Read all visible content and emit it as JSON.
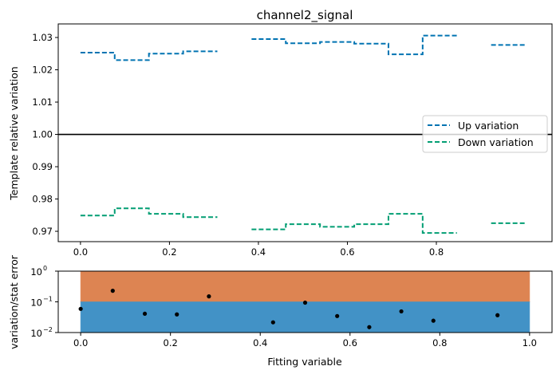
{
  "chart_data": [
    {
      "type": "line",
      "step": "post",
      "title": "channel2_signal",
      "xlabel": "",
      "ylabel": "Template relative variation",
      "xlim": [
        -0.05,
        1.06
      ],
      "ylim": [
        0.9668,
        1.0342
      ],
      "xticks": [
        "0.0",
        "0.2",
        "0.4",
        "0.6",
        "0.8"
      ],
      "xtick_values": [
        0,
        0.2,
        0.4,
        0.6,
        0.8
      ],
      "yticks": [
        "0.97",
        "0.98",
        "0.99",
        "1.00",
        "1.01",
        "1.02",
        "1.03"
      ],
      "ytick_values": [
        0.97,
        0.98,
        0.99,
        1.0,
        1.01,
        1.02,
        1.03
      ],
      "reference_line": 1.0,
      "bin_edges": [
        0,
        0.0769,
        0.1538,
        0.2308,
        0.3077,
        0.3846,
        0.4615,
        0.5385,
        0.6154,
        0.6923,
        0.7692,
        0.8462,
        0.9231,
        1.0
      ],
      "series": [
        {
          "name": "Up variation",
          "color": "#0173b2",
          "values": [
            1.0253,
            1.023,
            1.025,
            1.0257,
            null,
            1.0295,
            1.0282,
            1.0286,
            1.0281,
            1.0248,
            1.0306,
            null,
            1.0277
          ]
        },
        {
          "name": "Down variation",
          "color": "#029e73",
          "values": [
            0.9749,
            0.9771,
            0.9754,
            0.9744,
            null,
            0.9706,
            0.9722,
            0.9714,
            0.9722,
            0.9754,
            0.9695,
            null,
            0.9725
          ]
        }
      ],
      "legend": "center-right"
    },
    {
      "type": "scatter",
      "xlabel": "Fitting variable",
      "ylabel": "variation/stat error",
      "yscale": "log",
      "xlim": [
        -0.05,
        1.05
      ],
      "ylim": [
        0.01,
        1
      ],
      "xticks": [
        "0.0",
        "0.2",
        "0.4",
        "0.6",
        "0.8",
        "1.0"
      ],
      "xtick_values": [
        0,
        0.2,
        0.4,
        0.6,
        0.8,
        1.0
      ],
      "yticks": [
        "10",
        "10",
        "10"
      ],
      "ytick_exponents": [
        "−2",
        "−1",
        "0"
      ],
      "ytick_values": [
        0.01,
        0.1,
        1
      ],
      "bands": [
        {
          "from": 0.1,
          "to": 1,
          "x": [
            0,
            1
          ],
          "color": "#dd8452"
        },
        {
          "from": 0.01,
          "to": 0.1,
          "x": [
            0,
            1
          ],
          "color": "#4292c6"
        }
      ],
      "points": {
        "x": [
          0,
          0.0714,
          0.1429,
          0.2143,
          0.2857,
          0.4286,
          0.5,
          0.5714,
          0.6429,
          0.7143,
          0.7857,
          0.9286
        ],
        "y": [
          0.059,
          0.229,
          0.041,
          0.039,
          0.151,
          0.0215,
          0.094,
          0.0345,
          0.015,
          0.049,
          0.0243,
          0.0367
        ],
        "color": "#000000"
      }
    }
  ]
}
